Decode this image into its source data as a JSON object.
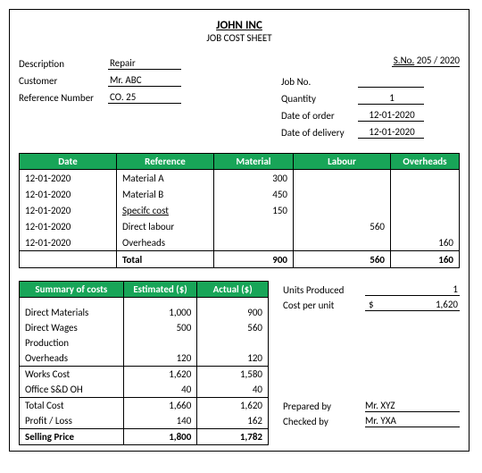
{
  "company": "JOHN INC",
  "sheet_title": "JOB COST SHEET",
  "left_fields": {
    "desc_label": "Description",
    "desc_value": "Repair",
    "cust_label": "Customer",
    "cust_value": "Mr. ABC",
    "ref_label": "Reference Number",
    "ref_value": "CO. 25"
  },
  "right_fields": {
    "sno_label": "S.No.",
    "sno_value": "205 / 2020",
    "jobno_label": "Job No.",
    "qty_label": "Quantity",
    "qty_value": "1",
    "order_label": "Date of order",
    "order_value": "12-01-2020",
    "deliv_label": "Date of delivery",
    "deliv_value": "12-01-2020"
  },
  "cost_columns": {
    "c1": "Date",
    "c2": "Reference",
    "c3": "Material",
    "c4": "Labour",
    "c5": "Overheads"
  },
  "cost_rows": [
    {
      "d": "12-01-2020",
      "r": "Material A",
      "m": "300",
      "l": "",
      "o": ""
    },
    {
      "d": "12-01-2020",
      "r": "Material B",
      "m": "450",
      "l": "",
      "o": ""
    },
    {
      "d": "12-01-2020",
      "r": "Specifc cost",
      "r_u": true,
      "m": "150",
      "l": "",
      "o": ""
    },
    {
      "d": "12-01-2020",
      "r": "Direct labour",
      "m": "",
      "l": "560",
      "o": ""
    },
    {
      "d": "12-01-2020",
      "r": "Overheads",
      "m": "",
      "l": "",
      "o": "160"
    }
  ],
  "cost_total": {
    "label": "Total",
    "m": "900",
    "l": "560",
    "o": "160"
  },
  "summary_columns": {
    "c1": "Summary of costs",
    "c2": "Estimated ($)",
    "c3": "Actual ($)"
  },
  "summary_rows": [
    {
      "label": "Direct Materials",
      "est": "1,000",
      "act": "900"
    },
    {
      "label": "Direct Wages",
      "est": "500",
      "act": "560"
    },
    {
      "label": "Production",
      "est": "",
      "act": ""
    },
    {
      "label": "Overheads",
      "est": "120",
      "act": "120"
    },
    {
      "label": "Works Cost",
      "est": "1,620",
      "act": "1,580",
      "line": true
    },
    {
      "label": "Office S&D OH",
      "est": "40",
      "act": "40"
    },
    {
      "label": "Total Cost",
      "est": "1,660",
      "act": "1,620",
      "line": true
    },
    {
      "label": "Profit / Loss",
      "est": "140",
      "act": "162"
    },
    {
      "label": "Selling Price",
      "est": "1,800",
      "act": "1,782",
      "line": true,
      "bold": true
    }
  ],
  "side": {
    "units_label": "Units Produced",
    "units_value": "1",
    "cpu_label": "Cost per unit",
    "cpu_currency": "$",
    "cpu_value": "1,620",
    "prep_label": "Prepared by",
    "prep_value": "Mr. XYZ",
    "check_label": "Checked by",
    "check_value": "Mr. YXA"
  },
  "colors": {
    "header_bg": "#18a558"
  }
}
